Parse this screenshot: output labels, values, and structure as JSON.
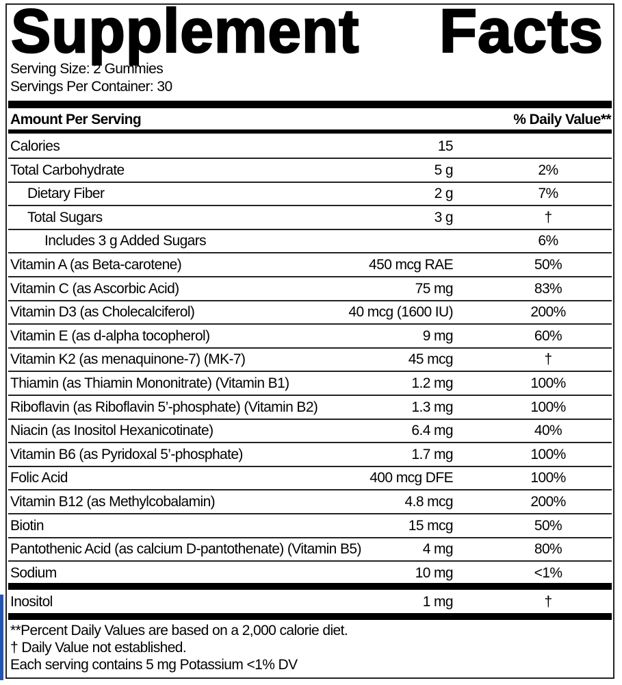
{
  "title": {
    "word1": "Supplement",
    "word2": "Facts"
  },
  "serving_size": "Serving Size: 2 Gummies",
  "servings_per_container": "Servings Per Container: 30",
  "header": {
    "amount": "Amount Per Serving",
    "dv": "% Daily Value**"
  },
  "rows": [
    {
      "name": "Calories",
      "amount": "15",
      "dv": "",
      "indent": 0
    },
    {
      "name": "Total Carbohydrate",
      "amount": "5 g",
      "dv": "2%",
      "indent": 0
    },
    {
      "name": "Dietary Fiber",
      "amount": "2 g",
      "dv": "7%",
      "indent": 1
    },
    {
      "name": "Total Sugars",
      "amount": "3 g",
      "dv": "†",
      "indent": 1
    },
    {
      "name": "Includes 3 g Added Sugars",
      "amount": "",
      "dv": "6%",
      "indent": 2
    },
    {
      "name": "Vitamin A (as Beta-carotene)",
      "amount": "450 mcg RAE",
      "dv": "50%",
      "indent": 0
    },
    {
      "name": "Vitamin C (as Ascorbic Acid)",
      "amount": "75 mg",
      "dv": "83%",
      "indent": 0
    },
    {
      "name": "Vitamin D3 (as Cholecalciferol)",
      "amount": "40 mcg (1600 IU)",
      "dv": "200%",
      "indent": 0
    },
    {
      "name": "Vitamin E (as d-alpha tocopherol)",
      "amount": "9 mg",
      "dv": "60%",
      "indent": 0
    },
    {
      "name": "Vitamin K2 (as menaquinone-7) (MK-7)",
      "amount": "45 mcg",
      "dv": "†",
      "indent": 0
    },
    {
      "name": "Thiamin (as Thiamin Mononitrate) (Vitamin B1)",
      "amount": "1.2 mg",
      "dv": "100%",
      "indent": 0
    },
    {
      "name": "Riboflavin (as Riboflavin 5’-phosphate) (Vitamin B2)",
      "amount": "1.3 mg",
      "dv": "100%",
      "indent": 0
    },
    {
      "name": "Niacin (as Inositol Hexanicotinate)",
      "amount": "6.4 mg",
      "dv": "40%",
      "indent": 0
    },
    {
      "name": "Vitamin B6 (as Pyridoxal 5’-phosphate)",
      "amount": "1.7 mg",
      "dv": "100%",
      "indent": 0
    },
    {
      "name": "Folic Acid",
      "amount": "400 mcg DFE",
      "dv": "100%",
      "indent": 0
    },
    {
      "name": "Vitamin B12 (as Methylcobalamin)",
      "amount": "4.8 mcg",
      "dv": "200%",
      "indent": 0
    },
    {
      "name": "Biotin",
      "amount": "15 mcg",
      "dv": "50%",
      "indent": 0
    },
    {
      "name": "Pantothenic Acid (as calcium D-pantothenate) (Vitamin B5)",
      "amount": "4 mg",
      "dv": "80%",
      "indent": 0
    },
    {
      "name": "Sodium",
      "amount": "10 mg",
      "dv": "<1%",
      "indent": 0
    }
  ],
  "other": [
    {
      "name": "Inositol",
      "amount": "1 mg",
      "dv": "†"
    }
  ],
  "footnotes": [
    "**Percent Daily Values are based on a 2,000 calorie diet.",
    "† Daily Value not established.",
    "Each serving contains 5 mg Potassium <1% DV"
  ]
}
